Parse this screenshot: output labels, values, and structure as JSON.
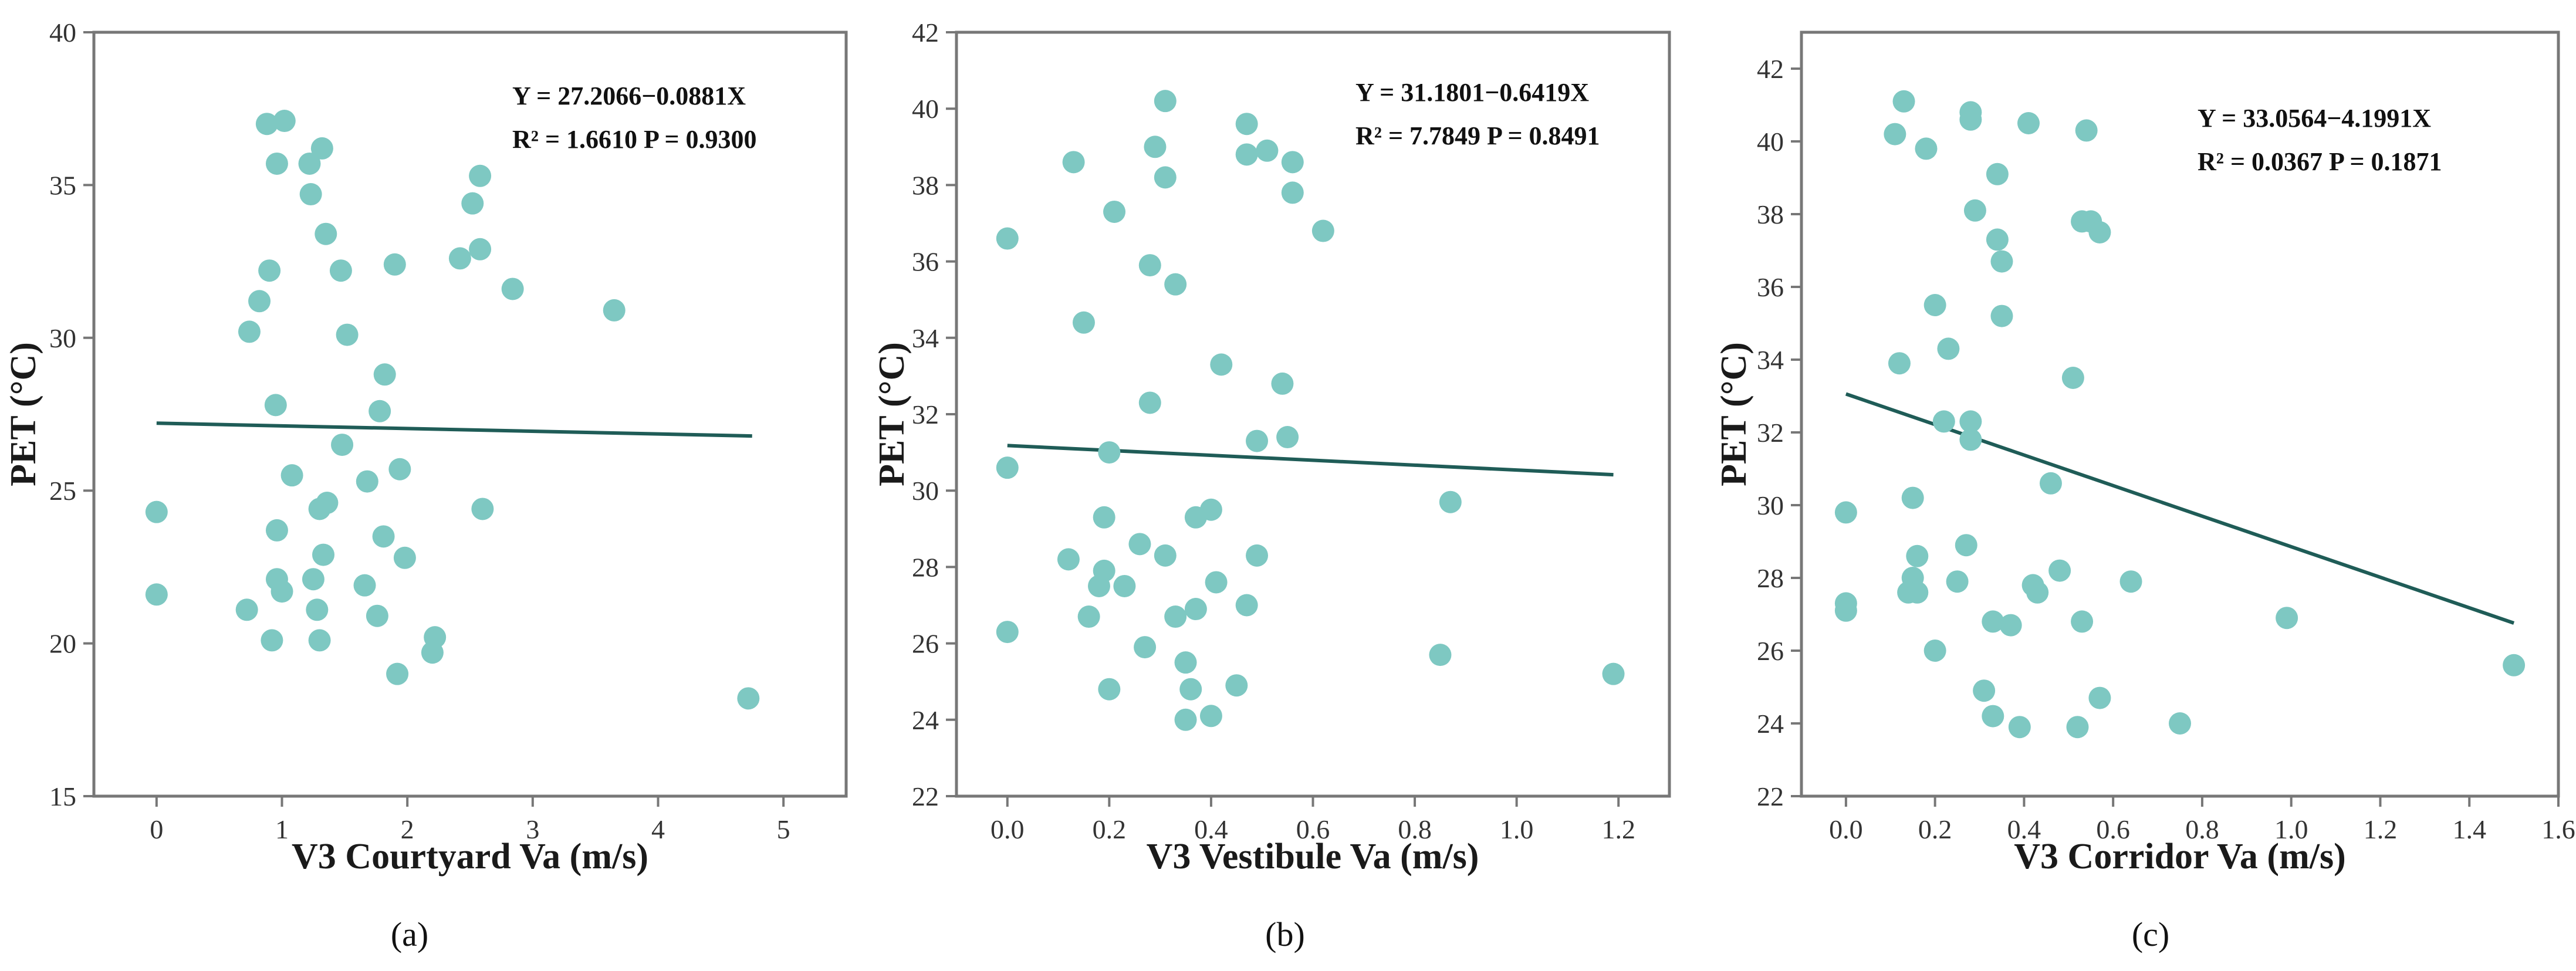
{
  "chart_data": [
    {
      "type": "scatter",
      "panel_label": "(a)",
      "xlabel": "V3 Courtyard Va (m/s)",
      "ylabel": "PET (°C)",
      "xlim": [
        -0.5,
        5.5
      ],
      "ylim": [
        15,
        40
      ],
      "xticks": [
        0,
        1,
        2,
        3,
        4,
        5
      ],
      "yticks": [
        15,
        20,
        25,
        30,
        35,
        40
      ],
      "xtick_labels": [
        "0",
        "1",
        "2",
        "3",
        "4",
        "5"
      ],
      "ytick_labels": [
        "15",
        "20",
        "25",
        "30",
        "35",
        "40"
      ],
      "equation": "Y = 27.2066−0.0881X",
      "stats": "R² = 1.6610  P = 0.9300",
      "fit": {
        "intercept": 27.2066,
        "slope": -0.0881,
        "x_range": [
          0,
          4.75
        ]
      },
      "points": [
        [
          0,
          24.3
        ],
        [
          0,
          21.6
        ],
        [
          0.72,
          21.1
        ],
        [
          0.74,
          30.2
        ],
        [
          0.82,
          31.2
        ],
        [
          0.88,
          37.0
        ],
        [
          0.9,
          32.2
        ],
        [
          0.92,
          20.1
        ],
        [
          0.95,
          27.8
        ],
        [
          0.96,
          35.7
        ],
        [
          0.96,
          23.7
        ],
        [
          0.96,
          22.1
        ],
        [
          1.0,
          21.7
        ],
        [
          1.02,
          37.1
        ],
        [
          1.08,
          25.5
        ],
        [
          1.22,
          35.7
        ],
        [
          1.23,
          34.7
        ],
        [
          1.25,
          22.1
        ],
        [
          1.28,
          21.1
        ],
        [
          1.3,
          20.1
        ],
        [
          1.3,
          24.4
        ],
        [
          1.32,
          36.2
        ],
        [
          1.33,
          22.9
        ],
        [
          1.35,
          33.4
        ],
        [
          1.36,
          24.6
        ],
        [
          1.47,
          32.2
        ],
        [
          1.48,
          26.5
        ],
        [
          1.52,
          30.1
        ],
        [
          1.66,
          21.9
        ],
        [
          1.68,
          25.3
        ],
        [
          1.76,
          20.9
        ],
        [
          1.78,
          27.6
        ],
        [
          1.81,
          23.5
        ],
        [
          1.82,
          28.8
        ],
        [
          1.9,
          32.4
        ],
        [
          1.92,
          19.0
        ],
        [
          1.94,
          25.7
        ],
        [
          1.98,
          22.8
        ],
        [
          2.2,
          19.7
        ],
        [
          2.22,
          20.2
        ],
        [
          2.42,
          32.6
        ],
        [
          2.52,
          34.4
        ],
        [
          2.58,
          32.9
        ],
        [
          2.58,
          35.3
        ],
        [
          2.6,
          24.4
        ],
        [
          2.84,
          31.6
        ],
        [
          3.65,
          30.9
        ],
        [
          4.72,
          18.2
        ]
      ]
    },
    {
      "type": "scatter",
      "panel_label": "(b)",
      "xlabel": "V3 Vestibule Va (m/s)",
      "ylabel": "PET (°C)",
      "xlim": [
        -0.1,
        1.3
      ],
      "ylim": [
        22,
        42
      ],
      "xticks": [
        0.0,
        0.2,
        0.4,
        0.6,
        0.8,
        1.0,
        1.2
      ],
      "yticks": [
        22,
        24,
        26,
        28,
        30,
        32,
        34,
        36,
        38,
        40,
        42
      ],
      "xtick_labels": [
        "0.0",
        "0.2",
        "0.4",
        "0.6",
        "0.8",
        "1.0",
        "1.2"
      ],
      "ytick_labels": [
        "22",
        "24",
        "26",
        "28",
        "30",
        "32",
        "34",
        "36",
        "38",
        "40",
        "42"
      ],
      "equation": "Y = 31.1801−0.6419X",
      "stats": "R² = 7.7849  P = 0.8491",
      "fit": {
        "intercept": 31.1801,
        "slope": -0.6419,
        "x_range": [
          0,
          1.19
        ]
      },
      "points": [
        [
          0,
          36.6
        ],
        [
          0,
          30.6
        ],
        [
          0,
          26.3
        ],
        [
          0.12,
          28.2
        ],
        [
          0.13,
          38.6
        ],
        [
          0.15,
          34.4
        ],
        [
          0.16,
          26.7
        ],
        [
          0.18,
          27.5
        ],
        [
          0.19,
          29.3
        ],
        [
          0.19,
          27.9
        ],
        [
          0.2,
          24.8
        ],
        [
          0.2,
          31.0
        ],
        [
          0.21,
          37.3
        ],
        [
          0.23,
          27.5
        ],
        [
          0.26,
          28.6
        ],
        [
          0.27,
          25.9
        ],
        [
          0.28,
          35.9
        ],
        [
          0.28,
          32.3
        ],
        [
          0.29,
          39.0
        ],
        [
          0.31,
          38.2
        ],
        [
          0.31,
          40.2
        ],
        [
          0.31,
          28.3
        ],
        [
          0.33,
          35.4
        ],
        [
          0.33,
          26.7
        ],
        [
          0.35,
          24.0
        ],
        [
          0.35,
          25.5
        ],
        [
          0.36,
          24.8
        ],
        [
          0.37,
          26.9
        ],
        [
          0.37,
          29.3
        ],
        [
          0.4,
          29.5
        ],
        [
          0.4,
          24.1
        ],
        [
          0.41,
          27.6
        ],
        [
          0.42,
          33.3
        ],
        [
          0.45,
          24.9
        ],
        [
          0.47,
          39.6
        ],
        [
          0.47,
          38.8
        ],
        [
          0.47,
          27.0
        ],
        [
          0.49,
          31.3
        ],
        [
          0.49,
          28.3
        ],
        [
          0.51,
          38.9
        ],
        [
          0.54,
          32.8
        ],
        [
          0.55,
          31.4
        ],
        [
          0.56,
          38.6
        ],
        [
          0.56,
          37.8
        ],
        [
          0.62,
          36.8
        ],
        [
          0.85,
          25.7
        ],
        [
          0.87,
          29.7
        ],
        [
          1.19,
          25.2
        ]
      ]
    },
    {
      "type": "scatter",
      "panel_label": "(c)",
      "xlabel": "V3 Corridor Va (m/s)",
      "ylabel": "PET (°C)",
      "xlim": [
        -0.1,
        1.6
      ],
      "ylim": [
        22,
        43
      ],
      "xticks": [
        0.0,
        0.2,
        0.4,
        0.6,
        0.8,
        1.0,
        1.2,
        1.4,
        1.6
      ],
      "yticks": [
        22,
        24,
        26,
        28,
        30,
        32,
        34,
        36,
        38,
        40,
        42
      ],
      "xtick_labels": [
        "0.0",
        "0.2",
        "0.4",
        "0.6",
        "0.8",
        "1.0",
        "1.2",
        "1.4",
        "1.6"
      ],
      "ytick_labels": [
        "22",
        "24",
        "26",
        "28",
        "30",
        "32",
        "34",
        "36",
        "38",
        "40",
        "42"
      ],
      "equation": "Y = 33.0564−4.1991X",
      "stats": "R² = 0.0367  P = 0.1871",
      "fit": {
        "intercept": 33.0564,
        "slope": -4.1991,
        "x_range": [
          0,
          1.5
        ]
      },
      "points": [
        [
          0,
          29.8
        ],
        [
          0,
          27.3
        ],
        [
          0,
          27.1
        ],
        [
          0.11,
          40.2
        ],
        [
          0.12,
          33.9
        ],
        [
          0.13,
          41.1
        ],
        [
          0.14,
          27.6
        ],
        [
          0.15,
          30.2
        ],
        [
          0.15,
          28.0
        ],
        [
          0.16,
          27.6
        ],
        [
          0.16,
          28.6
        ],
        [
          0.18,
          39.8
        ],
        [
          0.2,
          26.0
        ],
        [
          0.2,
          35.5
        ],
        [
          0.22,
          32.3
        ],
        [
          0.23,
          34.3
        ],
        [
          0.25,
          27.9
        ],
        [
          0.27,
          28.9
        ],
        [
          0.28,
          40.8
        ],
        [
          0.28,
          40.6
        ],
        [
          0.28,
          32.3
        ],
        [
          0.28,
          31.8
        ],
        [
          0.29,
          38.1
        ],
        [
          0.31,
          24.9
        ],
        [
          0.33,
          26.8
        ],
        [
          0.33,
          24.2
        ],
        [
          0.34,
          39.1
        ],
        [
          0.34,
          37.3
        ],
        [
          0.35,
          35.2
        ],
        [
          0.35,
          36.7
        ],
        [
          0.37,
          26.7
        ],
        [
          0.39,
          23.9
        ],
        [
          0.41,
          40.5
        ],
        [
          0.42,
          27.8
        ],
        [
          0.43,
          27.6
        ],
        [
          0.46,
          30.6
        ],
        [
          0.48,
          28.2
        ],
        [
          0.51,
          33.5
        ],
        [
          0.52,
          23.9
        ],
        [
          0.53,
          37.8
        ],
        [
          0.53,
          26.8
        ],
        [
          0.54,
          40.3
        ],
        [
          0.55,
          37.8
        ],
        [
          0.57,
          37.5
        ],
        [
          0.57,
          24.7
        ],
        [
          0.64,
          27.9
        ],
        [
          0.75,
          24.0
        ],
        [
          0.99,
          26.9
        ],
        [
          1.5,
          25.6
        ]
      ]
    }
  ],
  "colors": {
    "points": "#7ec8c2",
    "fit_line": "#1f5c57",
    "frame": "#777777"
  }
}
